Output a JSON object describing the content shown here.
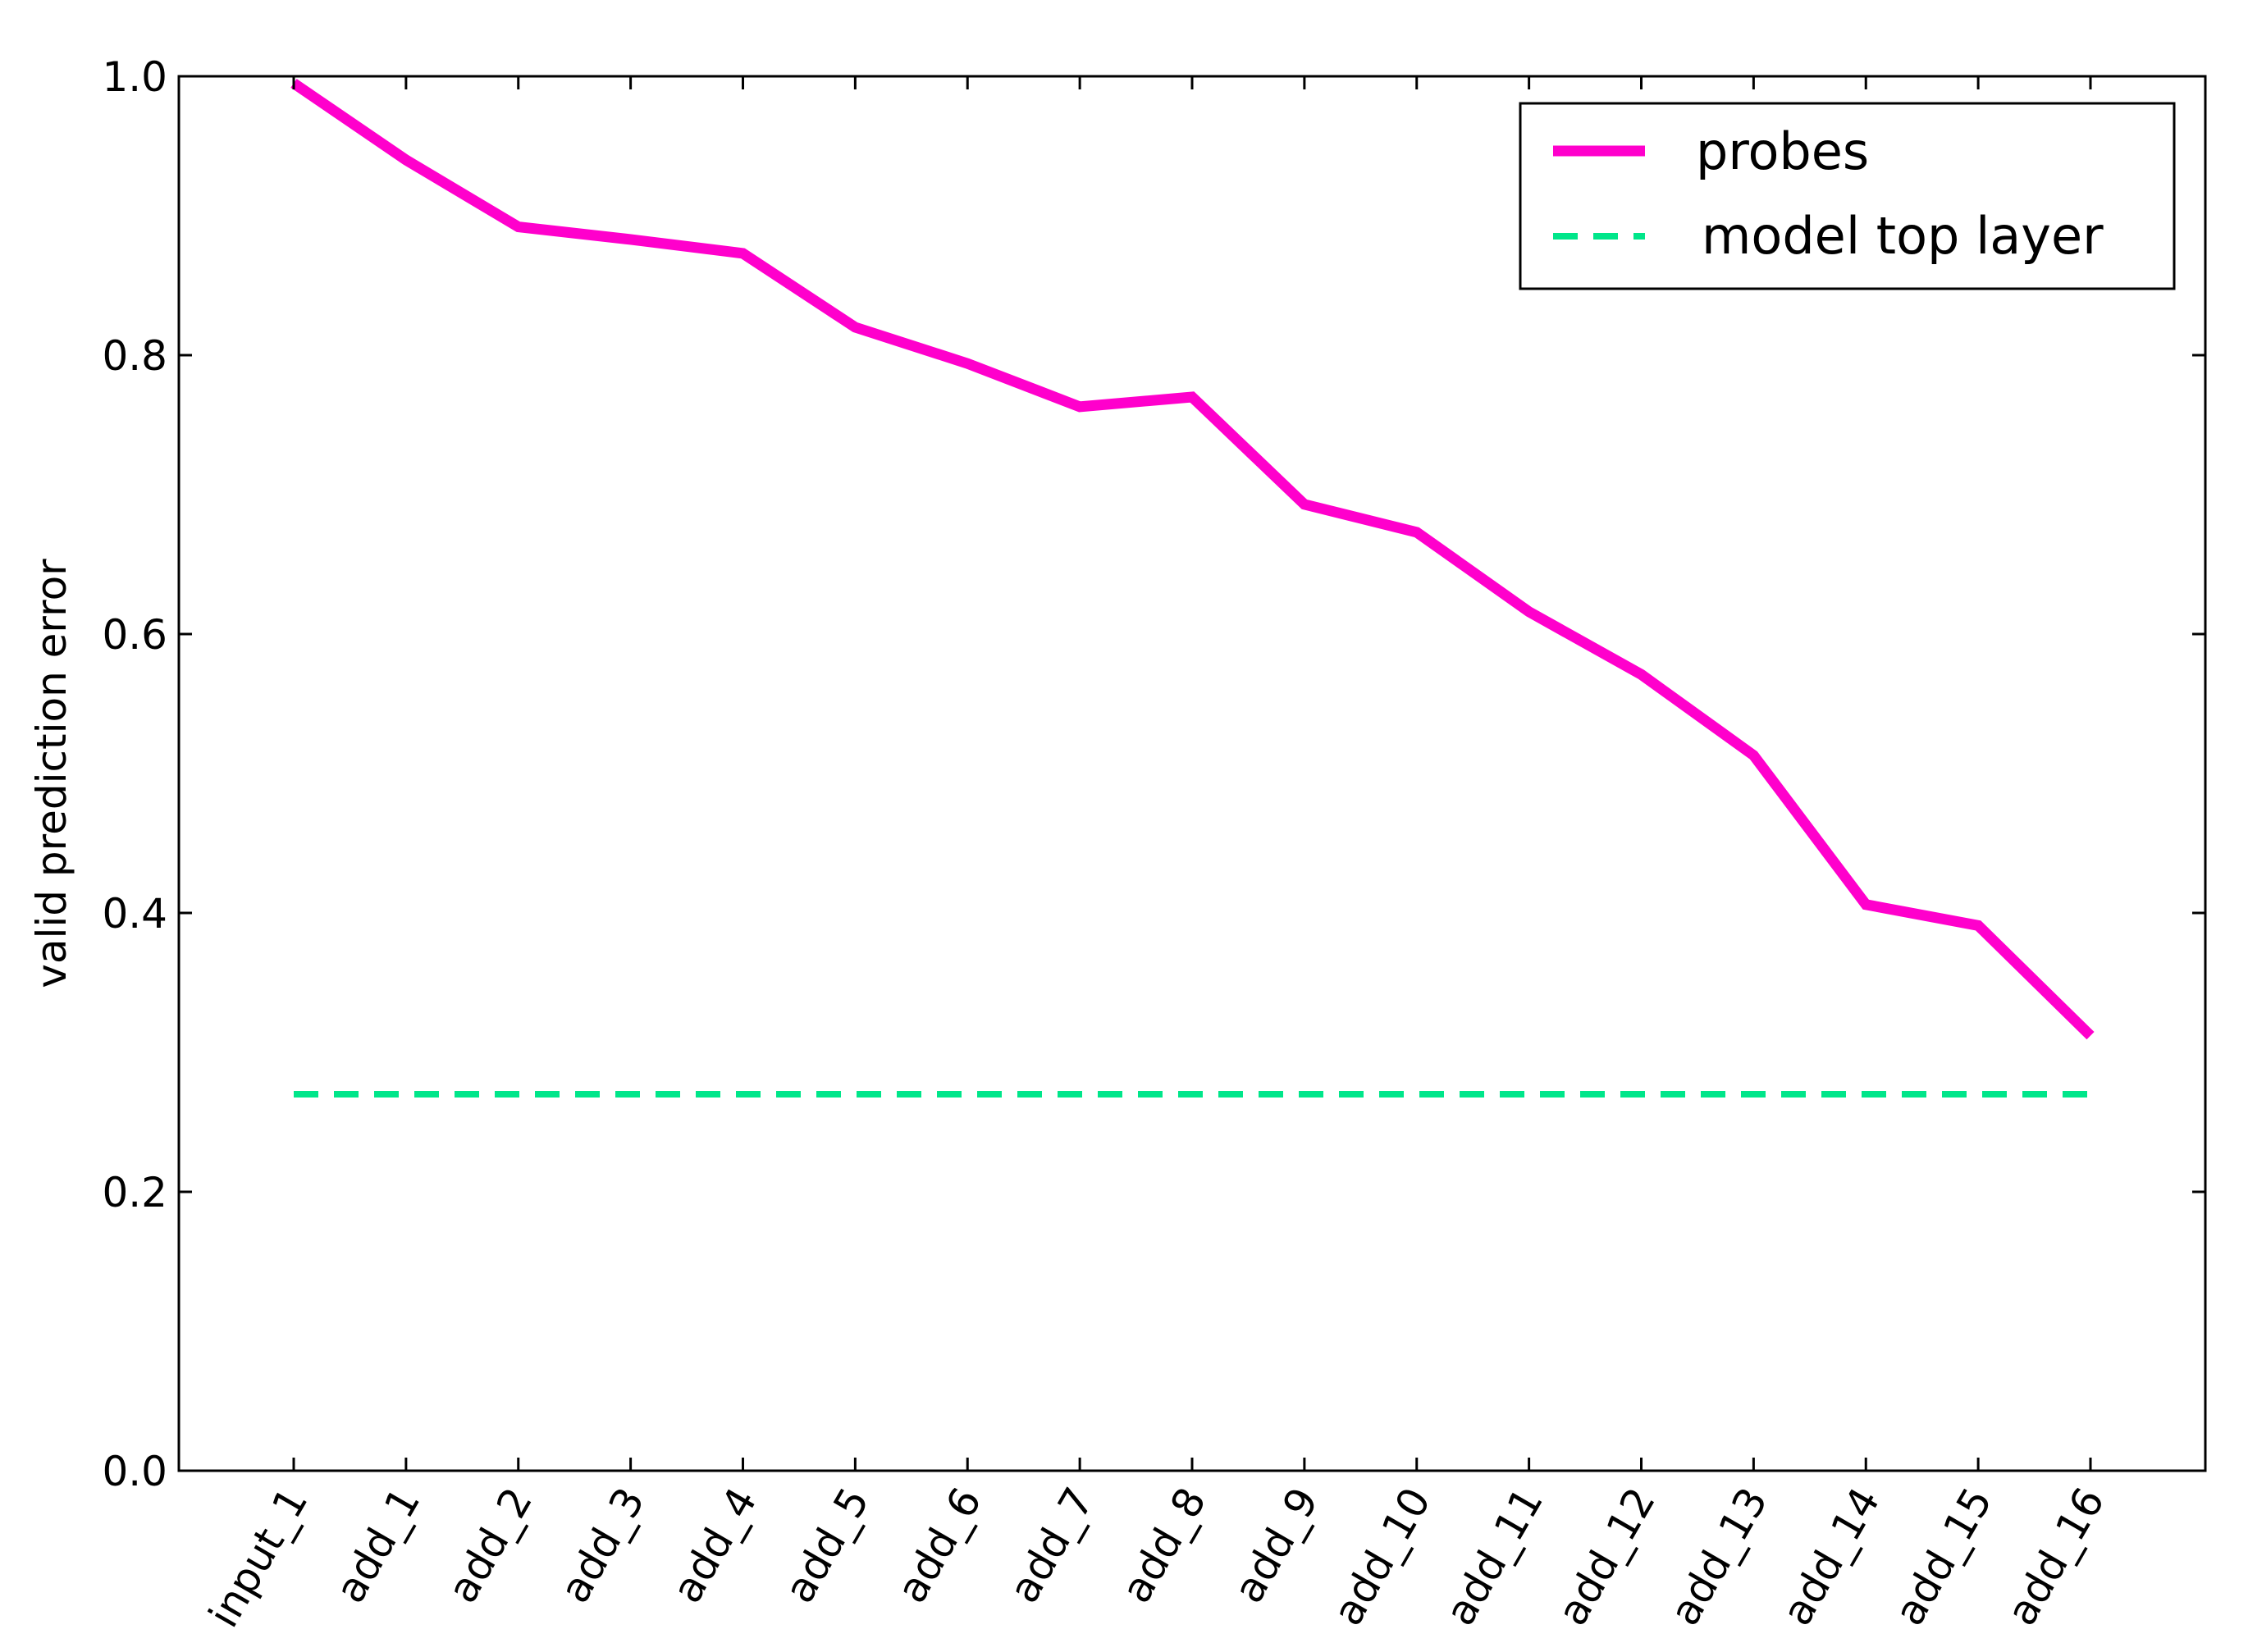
{
  "chart_data": {
    "type": "line",
    "title": "",
    "xlabel": "",
    "ylabel": "valid prediction error",
    "ylim": [
      0.0,
      1.0
    ],
    "yticks": [
      "0.0",
      "0.2",
      "0.4",
      "0.6",
      "0.8",
      "1.0"
    ],
    "grid": false,
    "legend_position": "top-right",
    "categories": [
      "input_1",
      "add_1",
      "add_2",
      "add_3",
      "add_4",
      "add_5",
      "add_6",
      "add_7",
      "add_8",
      "add_9",
      "add_10",
      "add_11",
      "add_12",
      "add_13",
      "add_14",
      "add_15",
      "add_16"
    ],
    "series": [
      {
        "name": "probes",
        "style": "solid",
        "color": "#ff00cc",
        "values": [
          0.995,
          0.94,
          0.892,
          0.883,
          0.873,
          0.82,
          0.794,
          0.763,
          0.77,
          0.693,
          0.673,
          0.616,
          0.571,
          0.513,
          0.406,
          0.391,
          0.312
        ]
      },
      {
        "name": "model top layer",
        "style": "dashed",
        "color": "#00e68a",
        "values": [
          0.27,
          0.27,
          0.27,
          0.27,
          0.27,
          0.27,
          0.27,
          0.27,
          0.27,
          0.27,
          0.27,
          0.27,
          0.27,
          0.27,
          0.27,
          0.27,
          0.27
        ]
      }
    ]
  }
}
